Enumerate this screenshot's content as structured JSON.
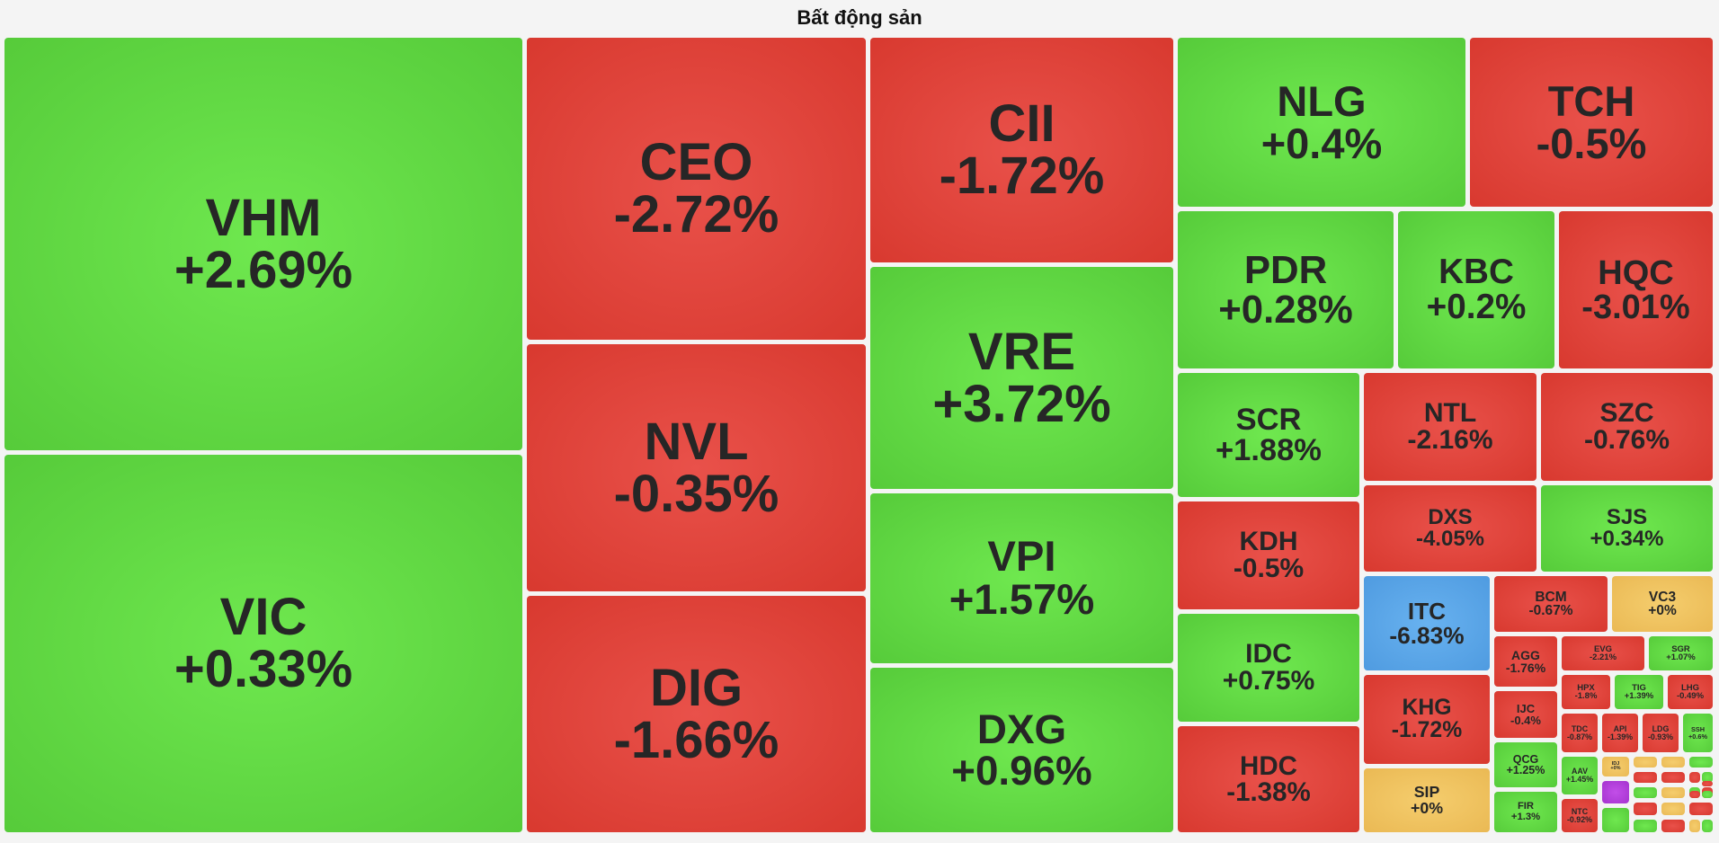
{
  "chart_data": {
    "type": "treemap",
    "title": "Bất động sản",
    "colors": {
      "up": "#5fd843",
      "down": "#e0443b",
      "reference": "#f0c45f",
      "floor": "#5ca6ea",
      "ceiling": "#b63fdc"
    },
    "items": [
      {
        "ticker": "VHM",
        "change_label": "+2.69%",
        "status": "up"
      },
      {
        "ticker": "VIC",
        "change_label": "+0.33%",
        "status": "up"
      },
      {
        "ticker": "CEO",
        "change_label": "-2.72%",
        "status": "down"
      },
      {
        "ticker": "NVL",
        "change_label": "-0.35%",
        "status": "down"
      },
      {
        "ticker": "DIG",
        "change_label": "-1.66%",
        "status": "down"
      },
      {
        "ticker": "CII",
        "change_label": "-1.72%",
        "status": "down"
      },
      {
        "ticker": "VRE",
        "change_label": "+3.72%",
        "status": "up"
      },
      {
        "ticker": "VPI",
        "change_label": "+1.57%",
        "status": "up"
      },
      {
        "ticker": "DXG",
        "change_label": "+0.96%",
        "status": "up"
      },
      {
        "ticker": "NLG",
        "change_label": "+0.4%",
        "status": "up"
      },
      {
        "ticker": "TCH",
        "change_label": "-0.5%",
        "status": "down"
      },
      {
        "ticker": "PDR",
        "change_label": "+0.28%",
        "status": "up"
      },
      {
        "ticker": "KBC",
        "change_label": "+0.2%",
        "status": "up"
      },
      {
        "ticker": "HQC",
        "change_label": "-3.01%",
        "status": "down"
      },
      {
        "ticker": "SCR",
        "change_label": "+1.88%",
        "status": "up"
      },
      {
        "ticker": "NTL",
        "change_label": "-2.16%",
        "status": "down"
      },
      {
        "ticker": "SZC",
        "change_label": "-0.76%",
        "status": "down"
      },
      {
        "ticker": "KDH",
        "change_label": "-0.5%",
        "status": "down"
      },
      {
        "ticker": "DXS",
        "change_label": "-4.05%",
        "status": "down"
      },
      {
        "ticker": "SJS",
        "change_label": "+0.34%",
        "status": "up"
      },
      {
        "ticker": "IDC",
        "change_label": "+0.75%",
        "status": "up"
      },
      {
        "ticker": "ITC",
        "change_label": "-6.83%",
        "status": "floor"
      },
      {
        "ticker": "BCM",
        "change_label": "-0.67%",
        "status": "down"
      },
      {
        "ticker": "VC3",
        "change_label": "+0%",
        "status": "reference"
      },
      {
        "ticker": "HDC",
        "change_label": "-1.38%",
        "status": "down"
      },
      {
        "ticker": "KHG",
        "change_label": "-1.72%",
        "status": "down"
      },
      {
        "ticker": "SIP",
        "change_label": "+0%",
        "status": "reference"
      },
      {
        "ticker": "AGG",
        "change_label": "-1.76%",
        "status": "down"
      },
      {
        "ticker": "IJC",
        "change_label": "-0.4%",
        "status": "down"
      },
      {
        "ticker": "QCG",
        "change_label": "+1.25%",
        "status": "up"
      },
      {
        "ticker": "FIR",
        "change_label": "+1.3%",
        "status": "up"
      },
      {
        "ticker": "EVG",
        "change_label": "-2.21%",
        "status": "down"
      },
      {
        "ticker": "SGR",
        "change_label": "+1.07%",
        "status": "up"
      },
      {
        "ticker": "HPX",
        "change_label": "-1.8%",
        "status": "down"
      },
      {
        "ticker": "TIG",
        "change_label": "+1.39%",
        "status": "up"
      },
      {
        "ticker": "LHG",
        "change_label": "-0.49%",
        "status": "down"
      },
      {
        "ticker": "TDC",
        "change_label": "-0.87%",
        "status": "down"
      },
      {
        "ticker": "API",
        "change_label": "-1.39%",
        "status": "down"
      },
      {
        "ticker": "LDG",
        "change_label": "-0.93%",
        "status": "down"
      },
      {
        "ticker": "SSH",
        "change_label": "+0.6%",
        "status": "up"
      },
      {
        "ticker": "AAV",
        "change_label": "+1.45%",
        "status": "up"
      },
      {
        "ticker": "IDJ",
        "change_label": "+0%",
        "status": "reference"
      },
      {
        "ticker": "NTC",
        "change_label": "-0.92%",
        "status": "down"
      },
      {
        "ticker": "",
        "change_label": "",
        "status": "reference"
      },
      {
        "ticker": "",
        "change_label": "",
        "status": "reference"
      },
      {
        "ticker": "",
        "change_label": "",
        "status": "up"
      },
      {
        "ticker": "",
        "change_label": "",
        "status": "down"
      },
      {
        "ticker": "",
        "change_label": "",
        "status": "down"
      },
      {
        "ticker": "",
        "change_label": "",
        "status": "down"
      },
      {
        "ticker": "",
        "change_label": "",
        "status": "up"
      },
      {
        "ticker": "",
        "change_label": "",
        "status": "ceiling"
      },
      {
        "ticker": "",
        "change_label": "",
        "status": "up"
      },
      {
        "ticker": "",
        "change_label": "",
        "status": "reference"
      },
      {
        "ticker": "",
        "change_label": "",
        "status": "up"
      },
      {
        "ticker": "",
        "change_label": "",
        "status": "down"
      },
      {
        "ticker": "",
        "change_label": "",
        "status": "up"
      },
      {
        "ticker": "",
        "change_label": "",
        "status": "down"
      },
      {
        "ticker": "",
        "change_label": "",
        "status": "reference"
      },
      {
        "ticker": "",
        "change_label": "",
        "status": "down"
      },
      {
        "ticker": "",
        "change_label": "",
        "status": "up"
      },
      {
        "ticker": "",
        "change_label": "",
        "status": "down"
      },
      {
        "ticker": "",
        "change_label": "",
        "status": "reference"
      },
      {
        "ticker": "",
        "change_label": "",
        "status": "up"
      },
      {
        "ticker": "",
        "change_label": "",
        "status": "down"
      },
      {
        "ticker": "",
        "change_label": "",
        "status": "up"
      },
      {
        "ticker": "",
        "change_label": "",
        "status": "down"
      }
    ]
  }
}
